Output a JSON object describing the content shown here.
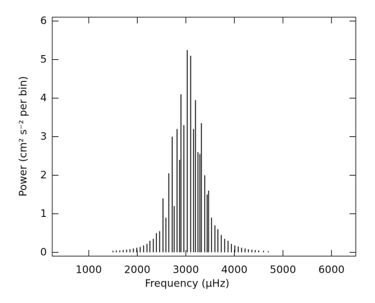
{
  "chart_data": {
    "type": "stem",
    "xlabel": "Frequency (μHz)",
    "ylabel": "Power (cm² s⁻² per bin)",
    "color": "#1a1a1a",
    "xlim": [
      250,
      6500
    ],
    "ylim": [
      -0.1,
      6.1
    ],
    "xticks": [
      1000,
      2000,
      3000,
      4000,
      5000,
      6000
    ],
    "yticks": [
      0,
      1,
      2,
      3,
      4,
      5,
      6
    ],
    "x": [
      1500,
      1570,
      1640,
      1710,
      1780,
      1850,
      1920,
      1990,
      2060,
      2130,
      2200,
      2260,
      2330,
      2395,
      2460,
      2530,
      2590,
      2650,
      2720,
      2760,
      2820,
      2870,
      2900,
      2960,
      3030,
      3100,
      3160,
      3200,
      3250,
      3290,
      3320,
      3390,
      3440,
      3470,
      3530,
      3600,
      3660,
      3730,
      3800,
      3870,
      3940,
      4010,
      4080,
      4150,
      4220,
      4290,
      4360,
      4430,
      4500,
      4600,
      4700
    ],
    "values": [
      0.04,
      0.05,
      0.05,
      0.06,
      0.07,
      0.08,
      0.1,
      0.12,
      0.14,
      0.18,
      0.22,
      0.3,
      0.35,
      0.5,
      0.55,
      1.4,
      0.9,
      2.05,
      3.0,
      1.2,
      3.2,
      2.4,
      4.1,
      3.3,
      5.25,
      5.1,
      3.2,
      3.95,
      2.6,
      2.55,
      3.35,
      2.0,
      1.5,
      1.6,
      0.9,
      0.7,
      0.6,
      0.45,
      0.35,
      0.3,
      0.22,
      0.18,
      0.15,
      0.12,
      0.1,
      0.08,
      0.07,
      0.06,
      0.05,
      0.04,
      0.03
    ]
  }
}
